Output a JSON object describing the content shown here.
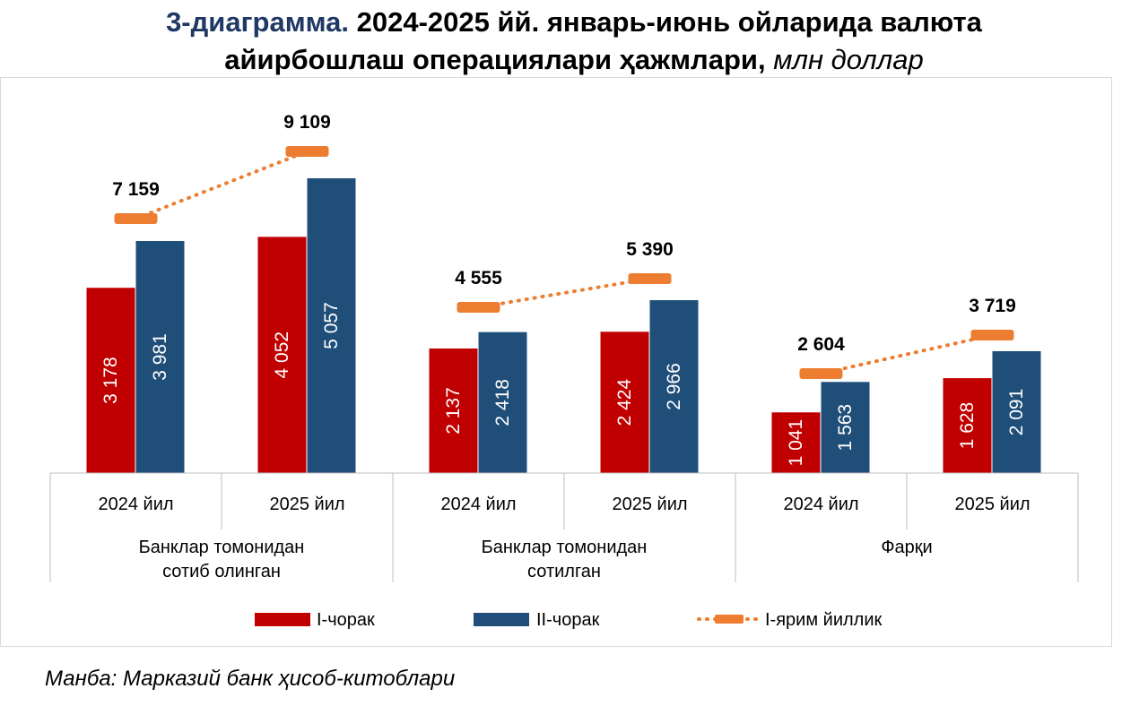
{
  "title": {
    "part1_colored": "3-диаграмма.",
    "part1_rest": " 2024-2025 йй. январь-июнь ойларида валюта",
    "part2": "айирбошлаш операциялари ҳажмлари,",
    "unit": " млн доллар"
  },
  "source": "Манба: Марказий банк ҳисоб-китоблари",
  "colors": {
    "q1": "#c00000",
    "q2": "#1f4e79",
    "half": "#ed7d31"
  },
  "chart_data": {
    "type": "bar",
    "groups": [
      {
        "label": "Банклар томонидан\nсотиб олинган",
        "years": [
          "2024 йил",
          "2025 йил"
        ],
        "q1": [
          "3 178",
          "4 052"
        ],
        "q2": [
          "3 981",
          "5 057"
        ],
        "half": [
          "7 159",
          "9 109"
        ]
      },
      {
        "label": "Банклар томонидан\nсотилган",
        "years": [
          "2024 йил",
          "2025 йил"
        ],
        "q1": [
          "2 137",
          "2 424"
        ],
        "q2": [
          "2 418",
          "2 966"
        ],
        "half": [
          "4 555",
          "5 390"
        ]
      },
      {
        "label": "Фарқи",
        "years": [
          "2024 йил",
          "2025 йил"
        ],
        "q1": [
          "1 041",
          "1 628"
        ],
        "q2": [
          "1 563",
          "2 091"
        ],
        "half": [
          "2 604",
          "3 719"
        ]
      }
    ],
    "values": {
      "q1": [
        3178,
        4052,
        2137,
        2424,
        1041,
        1628
      ],
      "q2": [
        3981,
        5057,
        2418,
        2966,
        1563,
        2091
      ],
      "half": [
        7159,
        9109,
        4555,
        5390,
        2604,
        3719
      ]
    },
    "legend": [
      {
        "key": "q1",
        "label": "I-чорак"
      },
      {
        "key": "q2",
        "label": "II-чорак"
      },
      {
        "key": "half",
        "label": "I-ярим йиллик"
      }
    ]
  }
}
